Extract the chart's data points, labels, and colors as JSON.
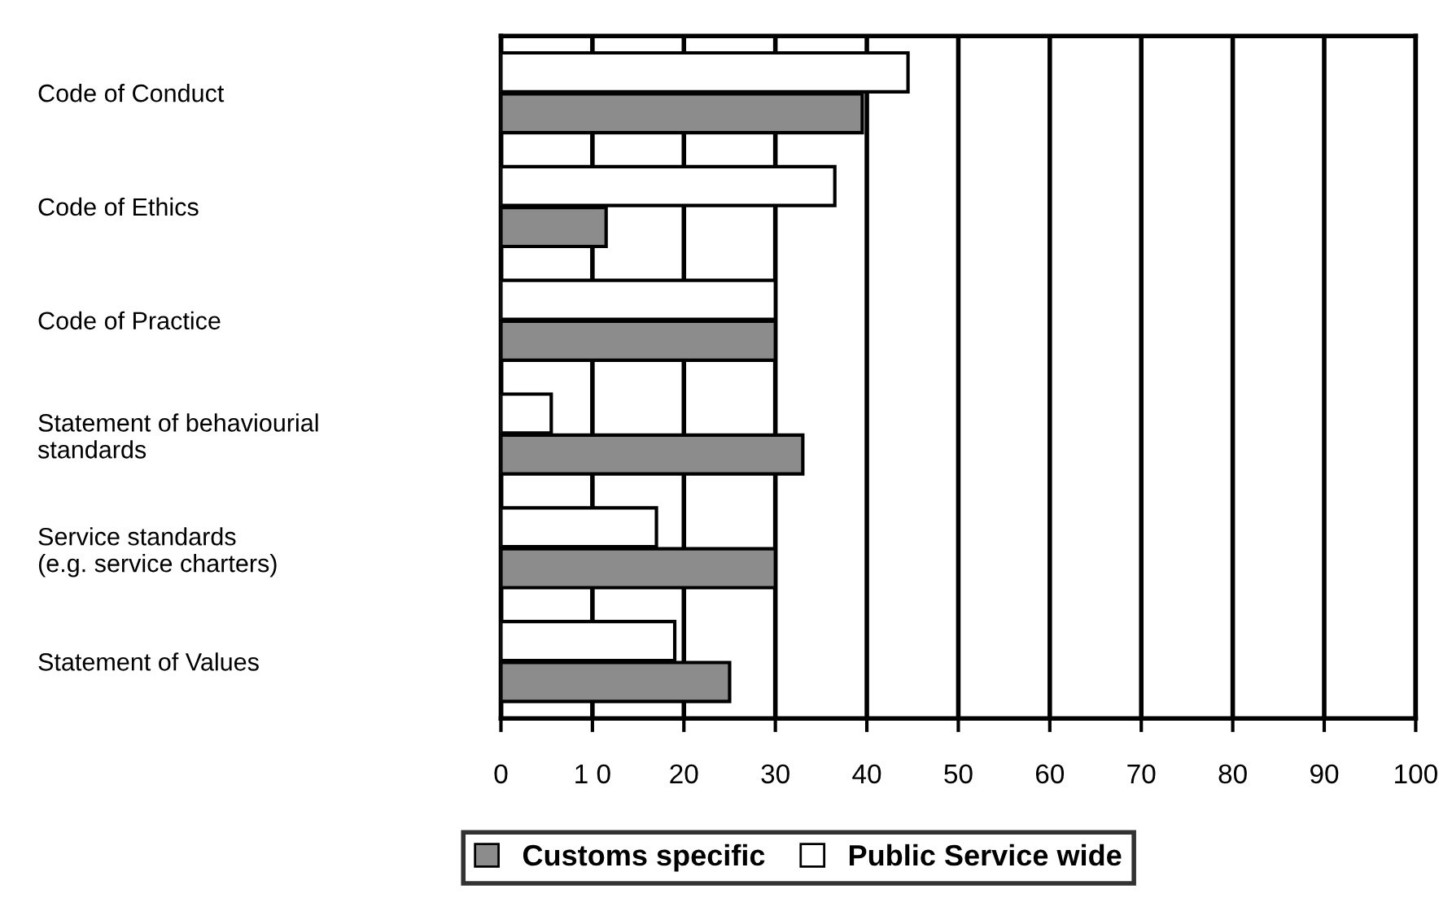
{
  "chart_data": {
    "type": "bar",
    "orientation": "horizontal",
    "categories": [
      "Code of Conduct",
      "Code of Ethics",
      "Code of Practice",
      "Statement of behaviourial\nstandards",
      "Service standards\n(e.g. service charters)",
      "Statement of Values"
    ],
    "series": [
      {
        "name": "Customs specific",
        "color": "#8c8c8c",
        "values": [
          39.5,
          11.5,
          30,
          33,
          30,
          25
        ]
      },
      {
        "name": "Public Service wide",
        "color": "#ffffff",
        "values": [
          44.5,
          36.5,
          30,
          5.5,
          17,
          19
        ]
      }
    ],
    "xlim": [
      0,
      100
    ],
    "xticks": [
      0,
      {
        "value": 10,
        "label": "1 0"
      },
      20,
      30,
      40,
      50,
      60,
      70,
      80,
      90,
      100
    ],
    "grid": "x",
    "legend": "bottom"
  }
}
